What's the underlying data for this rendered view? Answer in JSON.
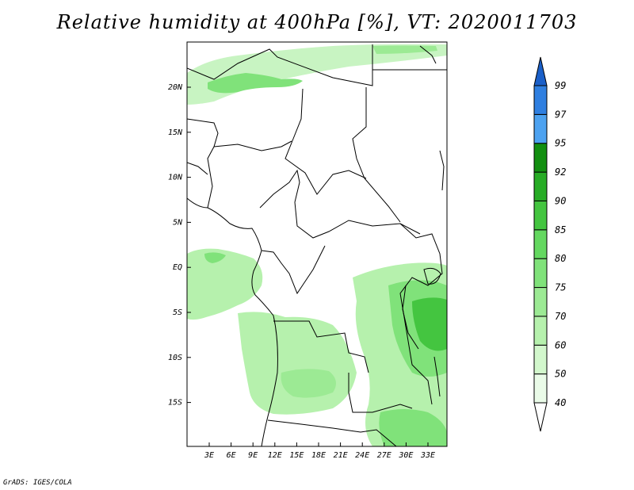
{
  "title": "Relative humidity at 400hPa [%], VT: 2020011703",
  "credit": "GrADS: IGES/COLA",
  "map": {
    "lat_labels": [
      "20N",
      "15N",
      "10N",
      "5N",
      "EQ",
      "5S",
      "10S",
      "15S"
    ],
    "lon_labels": [
      "3E",
      "6E",
      "9E",
      "12E",
      "15E",
      "18E",
      "21E",
      "24E",
      "27E",
      "30E",
      "33E"
    ]
  },
  "colorbar": {
    "levels": [
      "40",
      "50",
      "60",
      "70",
      "75",
      "80",
      "85",
      "90",
      "92",
      "95",
      "97",
      "99"
    ],
    "colors": [
      "#ffffff",
      "#eafbe8",
      "#d2f7cc",
      "#b6f1ad",
      "#9cea94",
      "#80e27a",
      "#64d860",
      "#44c540",
      "#27ac25",
      "#128f10",
      "#4da2f0",
      "#2f7fe0",
      "#1a5fc8"
    ]
  }
}
